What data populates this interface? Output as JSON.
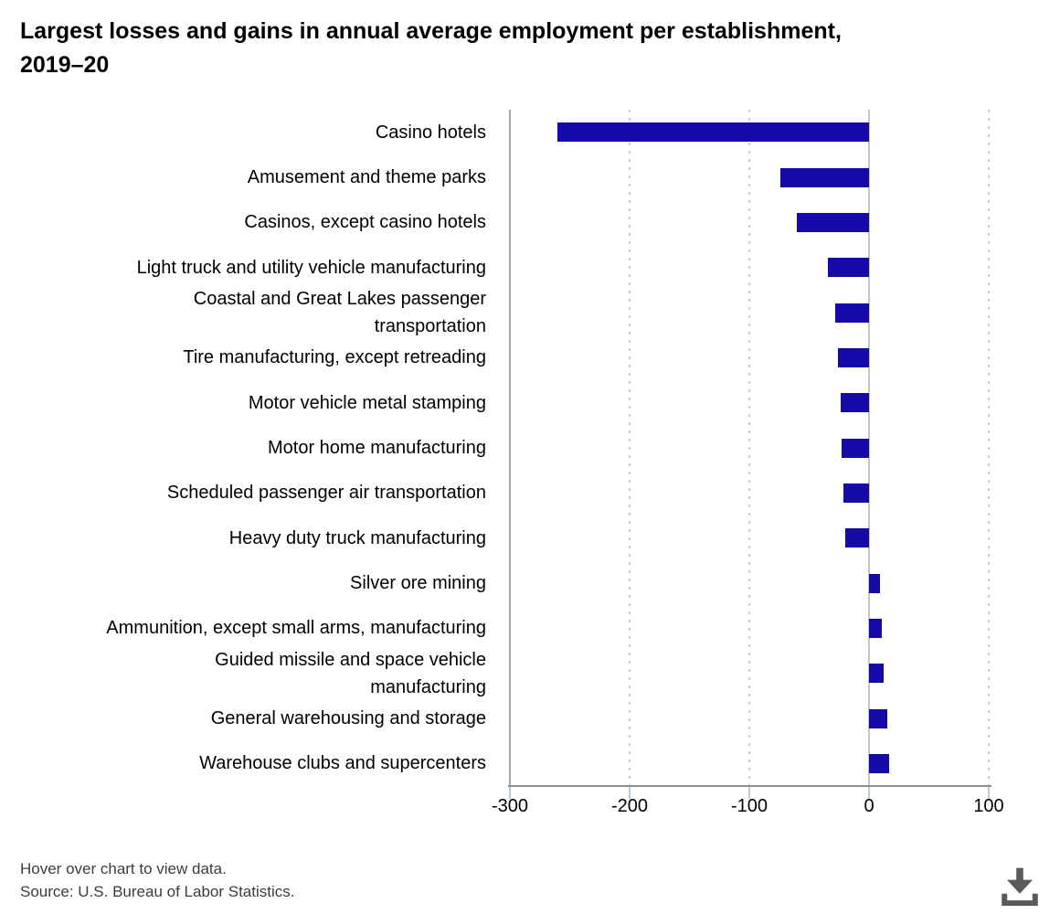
{
  "title": "Largest losses and gains in annual average employment per establishment,\n2019–20",
  "footer": {
    "hover_note": "Hover over chart to view data.",
    "source": "Source: U.S. Bureau of Labor Statistics."
  },
  "colors": {
    "bar": "#140aa8",
    "axis_line": "#8f8f8f",
    "gridline": "#cbcbcb",
    "zero_line": "#c5c5c5",
    "tick_mark": "#b9cada",
    "download_icon": "#5a5a5a"
  },
  "chart_data": {
    "type": "bar",
    "orientation": "horizontal",
    "title": "Largest losses and gains in annual average employment per establishment, 2019–20",
    "xlabel": "",
    "ylabel": "",
    "xlim": [
      -300,
      100
    ],
    "xticks": [
      -300,
      -200,
      -100,
      0,
      100
    ],
    "grid": "vertical dotted gridlines, solid zero line",
    "legend": "none",
    "bar_color": "#140aa8",
    "categories": [
      "Casino hotels",
      "Amusement and theme parks",
      "Casinos, except casino hotels",
      "Light truck and utility vehicle manufacturing",
      "Coastal and Great Lakes passenger\ntransportation",
      "Tire manufacturing, except retreading",
      "Motor vehicle metal stamping",
      "Motor home manufacturing",
      "Scheduled passenger air transportation",
      "Heavy duty truck manufacturing",
      "Silver ore mining",
      "Ammunition, except small arms, manufacturing",
      "Guided missile and space vehicle\nmanufacturing",
      "General warehousing and storage",
      "Warehouse clubs and supercenters"
    ],
    "values": [
      -260,
      -74,
      -60,
      -34,
      -28,
      -26,
      -24,
      -23,
      -21,
      -20,
      9,
      11,
      12,
      15,
      17
    ]
  }
}
